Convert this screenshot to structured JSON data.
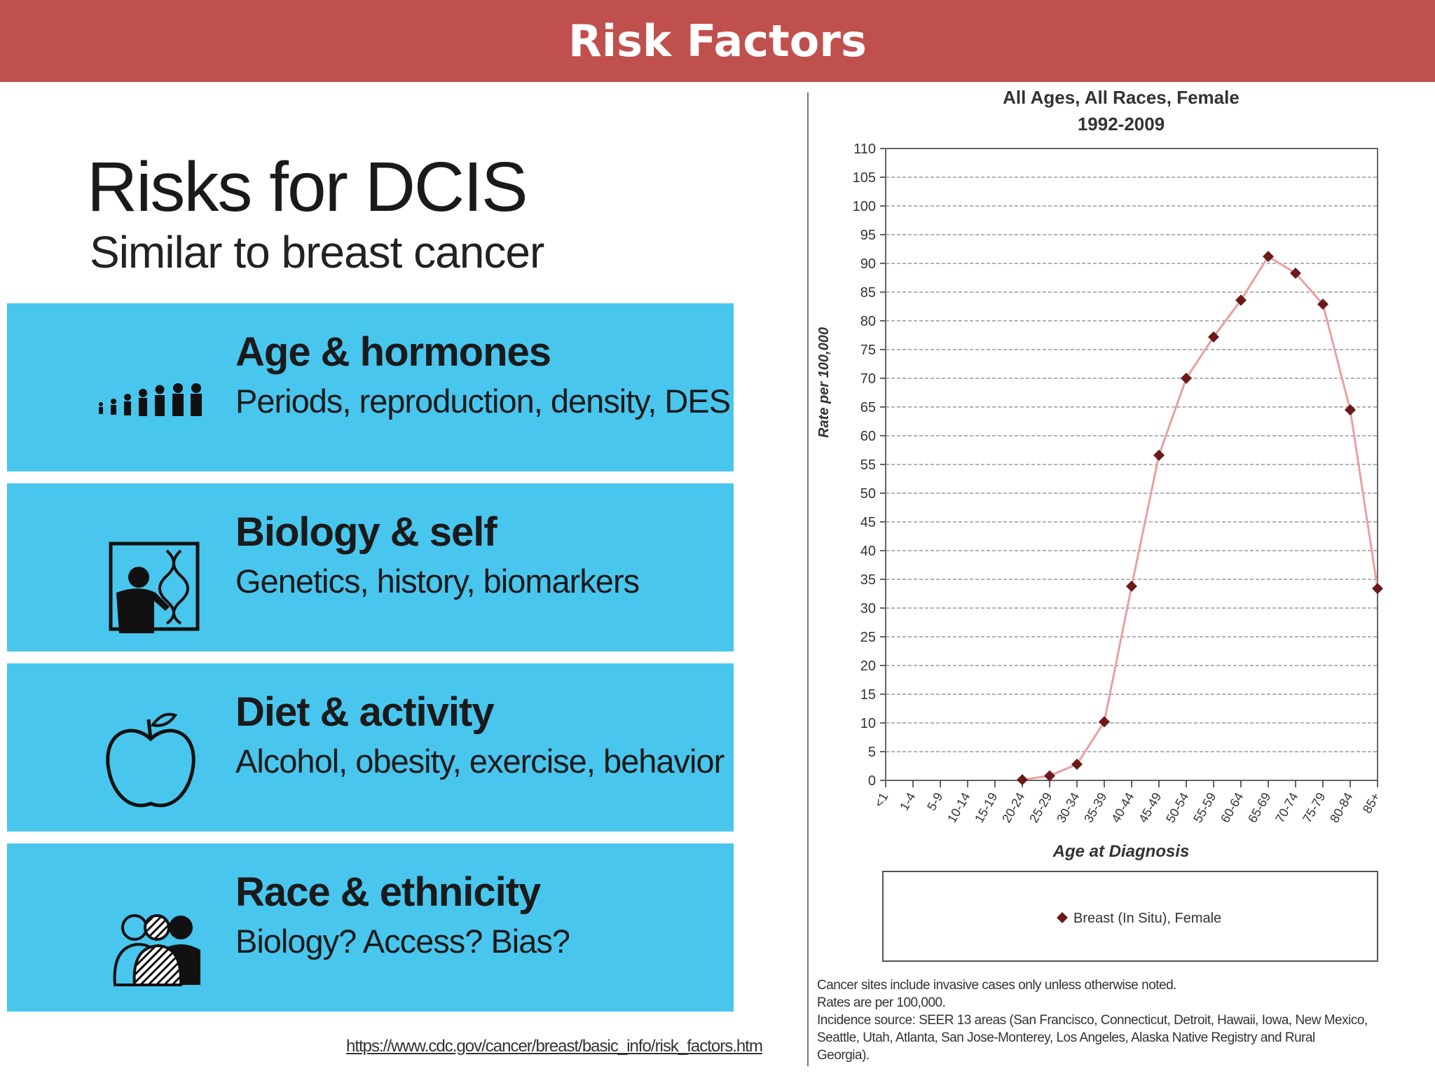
{
  "slide": {
    "title": "Risk Factors"
  },
  "left": {
    "heading": "Risks for DCIS",
    "subheading": "Similar to breast cancer",
    "panels": [
      {
        "title": "Age & hormones",
        "subtitle": "Periods, reproduction, density, DES",
        "icon": "age-progression-icon"
      },
      {
        "title": "Biology & self",
        "subtitle": "Genetics, history, biomarkers",
        "icon": "scientist-dna-icon"
      },
      {
        "title": "Diet & activity",
        "subtitle": "Alcohol, obesity, exercise, behavior",
        "icon": "apple-icon"
      },
      {
        "title": "Race & ethnicity",
        "subtitle": "Biology? Access? Bias?",
        "icon": "diverse-people-icon"
      }
    ],
    "source": "https://www.cdc.gov/cancer/breast/basic_info/risk_factors.htm",
    "panel_color": "#49c6ee"
  },
  "colors": {
    "title_bar": "#c0504d",
    "series_line": "#e8a0a0",
    "series_marker": "#6b1a1a"
  },
  "chart_data": {
    "type": "line",
    "title": "All Ages, All Races, Female",
    "subtitle": "1992-2009",
    "xlabel": "Age at Diagnosis",
    "ylabel": "Rate per 100,000",
    "ylim": [
      0,
      110
    ],
    "yticks": [
      0,
      5,
      10,
      15,
      20,
      25,
      30,
      35,
      40,
      45,
      50,
      55,
      60,
      65,
      70,
      75,
      80,
      85,
      90,
      95,
      100,
      105,
      110
    ],
    "grid": true,
    "legend_position": "bottom",
    "categories": [
      "<1",
      "1-4",
      "5-9",
      "10-14",
      "15-19",
      "20-24",
      "25-29",
      "30-34",
      "35-39",
      "40-44",
      "45-49",
      "50-54",
      "55-59",
      "60-64",
      "65-69",
      "70-74",
      "75-79",
      "80-84",
      "85+"
    ],
    "series": [
      {
        "name": "Breast (In Situ), Female",
        "values": [
          null,
          null,
          null,
          null,
          null,
          0.1,
          0.8,
          2.8,
          10.2,
          33.8,
          56.6,
          70.0,
          77.2,
          83.6,
          91.2,
          88.3,
          82.9,
          64.5,
          33.4
        ]
      }
    ],
    "footnotes": [
      "Cancer sites include invasive cases only unless otherwise noted.",
      "Rates are per 100,000.",
      "Incidence source: SEER 13 areas (San Francisco, Connecticut, Detroit, Hawaii, Iowa, New Mexico,",
      "Seattle, Utah, Atlanta, San Jose-Monterey, Los Angeles, Alaska Native Registry and Rural",
      "Georgia)."
    ]
  }
}
